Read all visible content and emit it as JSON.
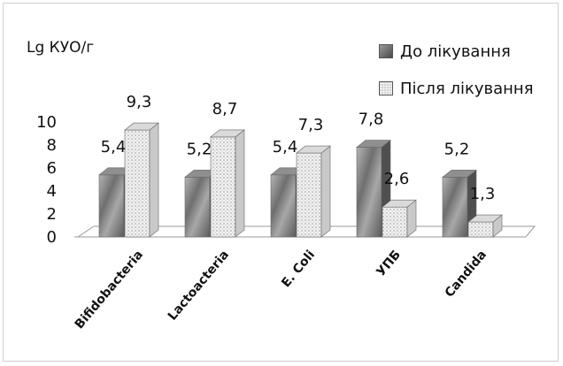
{
  "chart_data": {
    "type": "bar",
    "ylabel": "Lg КУО/г",
    "categories": [
      "Bifidobacteria",
      "Lactoacteria",
      "E. Coli",
      "УПБ",
      "Candida"
    ],
    "series": [
      {
        "name": "До лікування",
        "values": [
          5.4,
          5.2,
          5.4,
          7.8,
          5.2
        ],
        "color": "#7a7a7a"
      },
      {
        "name": "Після лікування",
        "values": [
          9.3,
          8.7,
          7.3,
          2.6,
          1.3
        ],
        "color": "#e0e0e0"
      }
    ],
    "data_labels": [
      [
        "5,4",
        "5,2",
        "5,4",
        "7,8",
        "5,2"
      ],
      [
        "9,3",
        "8,7",
        "7,3",
        "2,6",
        "1,3"
      ]
    ],
    "yticks": [
      "0",
      "2",
      "4",
      "6",
      "8",
      "10"
    ],
    "ylim": [
      0,
      10
    ],
    "grid": false,
    "legend_position": "top-right",
    "projection": "3d"
  }
}
